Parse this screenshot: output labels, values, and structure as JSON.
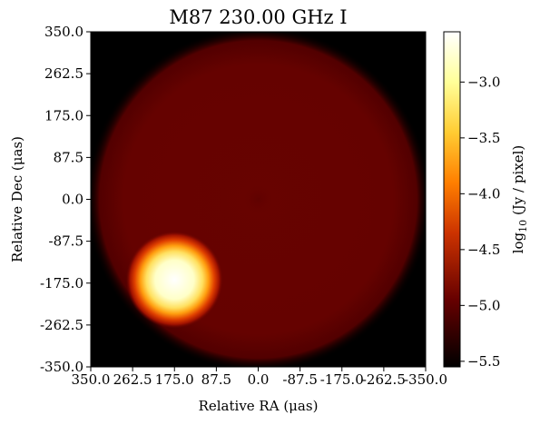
{
  "chart_data": {
    "type": "heatmap",
    "title": "M87 230.00 GHz I",
    "xlabel": "Relative RA (μas)",
    "ylabel": "Relative Dec (μas)",
    "xlim": [
      350.0,
      -350.0
    ],
    "ylim": [
      -350.0,
      350.0
    ],
    "x_ticks": [
      350.0,
      262.5,
      175.0,
      87.5,
      0.0,
      -87.5,
      -175.0,
      -262.5,
      -350.0
    ],
    "x_tick_labels": [
      "350.0",
      "262.5",
      "175.0",
      "87.5",
      "0.0",
      "-87.5",
      "-175.0",
      "-262.5",
      "-350.0"
    ],
    "y_ticks": [
      350.0,
      262.5,
      175.0,
      87.5,
      0.0,
      -87.5,
      -175.0,
      -262.5,
      -350.0
    ],
    "y_tick_labels": [
      "350.0",
      "262.5",
      "175.0",
      "87.5",
      "0.0",
      "-87.5",
      "-175.0",
      "-262.5",
      "-350.0"
    ],
    "colorbar": {
      "label_main": "log",
      "label_sub": "10",
      "label_rest": " (Jy / pixel)",
      "colormap": "afmhot",
      "range": [
        -5.55,
        -2.55
      ],
      "ticks": [
        -3.0,
        -3.5,
        -4.0,
        -4.5,
        -5.0,
        -5.5
      ],
      "tick_labels": [
        "−3.0",
        "−3.5",
        "−4.0",
        "−4.5",
        "−5.0",
        "−5.5"
      ]
    },
    "features": {
      "disk": {
        "center_ra": 0,
        "center_dec": 0,
        "radius": 350,
        "level": -5.05
      },
      "hotspot": {
        "center_ra": 175,
        "center_dec": -168,
        "radius": 70,
        "peak_level": -2.7
      },
      "background_level": -5.55
    },
    "grid": false
  }
}
